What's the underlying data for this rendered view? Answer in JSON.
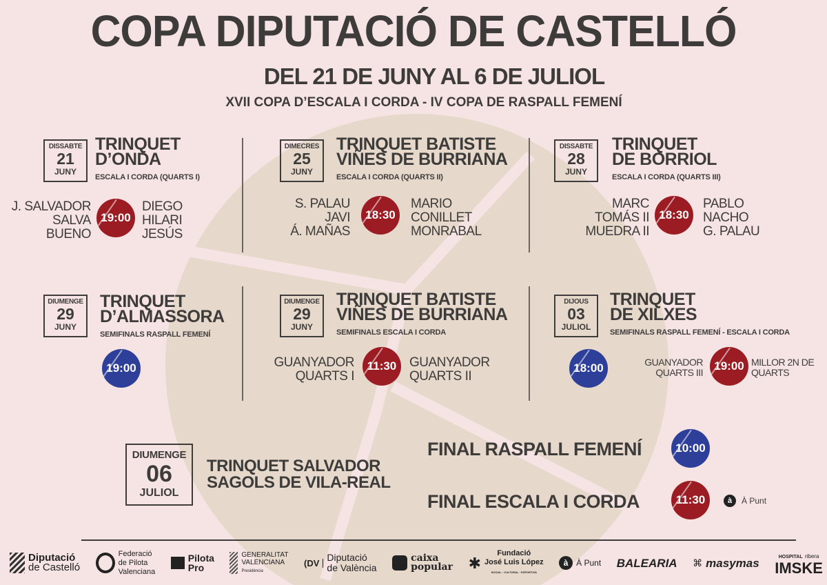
{
  "title": "COPA DIPUTACIÓ DE CASTELLÓ",
  "dates": "DEL 21 DE JUNY AL 6 DE JULIOL",
  "competitions": "XVII COPA D’ESCALA I CORDA - IV COPA DE RASPALL FEMENÍ",
  "colors": {
    "background": "#f6e4e4",
    "text": "#3d3c3a",
    "red": "#9b1c23",
    "blue": "#2d3f98",
    "ball": "#e7d8cc"
  },
  "matches": [
    {
      "day": "DISSABTE",
      "num": "21",
      "month": "JUNY",
      "venue1": "TRINQUET",
      "venue2": "D’ONDA",
      "category": "ESCALA I CORDA (QUARTS I)",
      "left": [
        "J. SALVADOR",
        "SALVA",
        "BUENO"
      ],
      "time": "19:00",
      "right": [
        "DIEGO",
        "HILARI",
        "JESÚS"
      ]
    },
    {
      "day": "DIMECRES",
      "num": "25",
      "month": "JUNY",
      "venue1": "TRINQUET BATISTE",
      "venue2": "VIÑES DE BURRIANA",
      "category": "ESCALA I CORDA (QUARTS II)",
      "left": [
        "S. PALAU",
        "JAVI",
        "Á. MAÑAS"
      ],
      "time": "18:30",
      "right": [
        "MARIO",
        "CONILLET",
        "MONRABAL"
      ]
    },
    {
      "day": "DISSABTE",
      "num": "28",
      "month": "JUNY",
      "venue1": "TRINQUET",
      "venue2": "DE BORRIOL",
      "category": "ESCALA I CORDA (QUARTS III)",
      "left": [
        "MARC",
        "TOMÁS II",
        "MUEDRA II"
      ],
      "time": "18:30",
      "right": [
        "PABLO",
        "NACHO",
        "G. PALAU"
      ]
    },
    {
      "day": "DIUMENGE",
      "num": "29",
      "month": "JUNY",
      "venue1": "TRINQUET",
      "venue2": "D’ALMASSORA",
      "category": "SEMIFINALS RASPALL FEMENÍ",
      "time": "19:00"
    },
    {
      "day": "DIUMENGE",
      "num": "29",
      "month": "JUNY",
      "venue1": "TRINQUET BATISTE",
      "venue2": "VIÑES DE BURRIANA",
      "category": "SEMIFINALS ESCALA I CORDA",
      "left": [
        "GUANYADOR",
        "QUARTS I"
      ],
      "time": "11:30",
      "right": [
        "GUANYADOR",
        "QUARTS II"
      ]
    },
    {
      "day": "DIJOUS",
      "num": "03",
      "month": "JULIOL",
      "venue1": "TRINQUET",
      "venue2": "DE XILXES",
      "category": "SEMIFINALS RASPALL FEMENÍ - ESCALA I CORDA",
      "time_a": "18:00",
      "left": [
        "GUANYADOR",
        "QUARTS III"
      ],
      "time": "19:00",
      "right": [
        "MILLOR 2N DE",
        "QUARTS"
      ]
    }
  ],
  "final": {
    "day": "DIUMENGE",
    "num": "06",
    "month": "JULIOL",
    "venue1": "TRINQUET SALVADOR",
    "venue2": "SAGOLS DE VILA-REAL",
    "raspall": "FINAL RASPALL FEMENÍ",
    "raspall_time": "10:00",
    "escala": "FINAL ESCALA I CORDA",
    "escala_time": "11:30",
    "tv": "À Punt"
  },
  "sponsors": [
    "Diputació",
    "de Castelló",
    "Federació",
    "de Pilota",
    "Valenciana",
    "Pilota",
    "Pro",
    "GENERALITAT",
    "VALENCIANA",
    "Presidència",
    "Diputació",
    "de València",
    "caixa",
    "popular",
    "Fundació",
    "José Luis López",
    "SOCIAL · CULTURAL · ESPORTIVA",
    "À Punt",
    "BALEARIA",
    "masymas",
    "HOSPITAL",
    "ribera",
    "IMSKE"
  ]
}
